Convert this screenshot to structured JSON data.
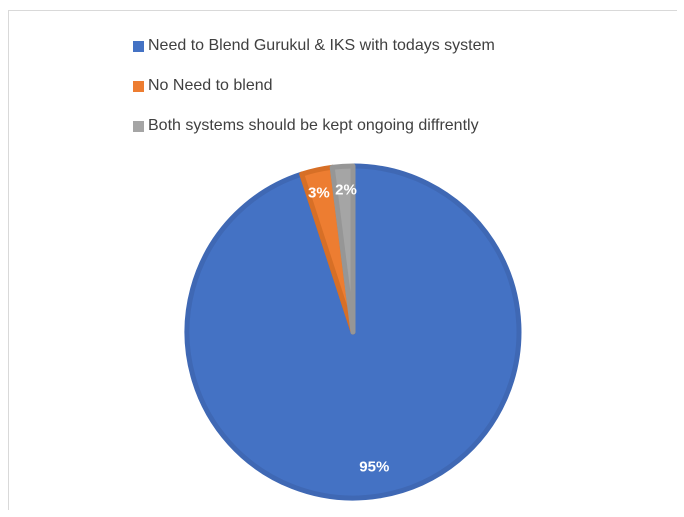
{
  "chart_data": {
    "type": "pie",
    "title": "",
    "categories": [
      "Need to Blend Gurukul & IKS with todays system",
      "No Need to blend",
      "Both systems should be kept ongoing diffrently"
    ],
    "values": [
      95,
      3,
      2
    ],
    "data_labels": [
      "95%",
      "3%",
      "2%"
    ],
    "colors": [
      "#4472c4",
      "#ed7d31",
      "#a5a5a5"
    ],
    "legend_position": "top",
    "start_angle": "12 o'clock, clockwise"
  }
}
